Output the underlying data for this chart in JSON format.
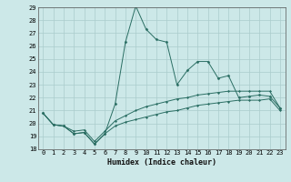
{
  "xlabel": "Humidex (Indice chaleur)",
  "x": [
    0,
    1,
    2,
    3,
    4,
    5,
    6,
    7,
    8,
    9,
    10,
    11,
    12,
    13,
    14,
    15,
    16,
    17,
    18,
    19,
    20,
    21,
    22,
    23
  ],
  "y_main": [
    20.8,
    19.9,
    19.8,
    19.2,
    19.3,
    18.4,
    19.2,
    21.5,
    26.3,
    29.1,
    27.3,
    26.5,
    26.3,
    23.0,
    24.1,
    24.8,
    24.8,
    23.5,
    23.7,
    22.0,
    22.1,
    22.2,
    22.1,
    21.2
  ],
  "y_low": [
    20.8,
    19.9,
    19.8,
    19.2,
    19.3,
    18.4,
    19.2,
    19.8,
    20.1,
    20.3,
    20.5,
    20.7,
    20.9,
    21.0,
    21.2,
    21.4,
    21.5,
    21.6,
    21.7,
    21.8,
    21.8,
    21.8,
    21.9,
    21.0
  ],
  "y_high": [
    20.8,
    19.9,
    19.8,
    19.4,
    19.5,
    18.6,
    19.4,
    20.2,
    20.6,
    21.0,
    21.3,
    21.5,
    21.7,
    21.9,
    22.0,
    22.2,
    22.3,
    22.4,
    22.5,
    22.5,
    22.5,
    22.5,
    22.5,
    21.2
  ],
  "line_color": "#2a6e63",
  "background_color": "#cce8e8",
  "grid_color": "#aacccc",
  "ylim_min": 18,
  "ylim_max": 29,
  "tick_fontsize": 5,
  "xlabel_fontsize": 6
}
